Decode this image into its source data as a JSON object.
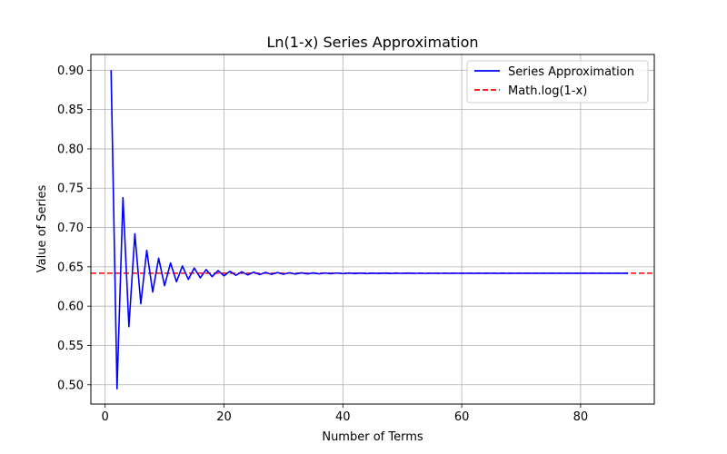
{
  "chart_data": {
    "type": "line",
    "title": "Ln(1-x) Series Approximation",
    "xlabel": "Number of Terms",
    "ylabel": "Value of Series",
    "xlim": [
      -2.4,
      92.4
    ],
    "ylim": [
      0.4755,
      0.92
    ],
    "x_ticks": [
      0,
      20,
      40,
      60,
      80
    ],
    "x_tick_labels": [
      "0",
      "20",
      "40",
      "60",
      "80"
    ],
    "y_ticks": [
      0.5,
      0.55,
      0.6,
      0.65,
      0.7,
      0.75,
      0.8,
      0.85,
      0.9
    ],
    "y_tick_labels": [
      "0.50",
      "0.55",
      "0.60",
      "0.65",
      "0.70",
      "0.75",
      "0.80",
      "0.85",
      "0.90"
    ],
    "grid": true,
    "legend_position": "top-right",
    "reference_line": {
      "name": "Math.log(1-x)",
      "value": 0.6419,
      "color": "#ff0000",
      "style": "dashed"
    },
    "series": [
      {
        "name": "Series Approximation",
        "color": "#0000ff",
        "style": "solid",
        "x_start": 1,
        "x_end": 88,
        "values": [
          0.9,
          0.495,
          0.738,
          0.574,
          0.692,
          0.603,
          0.671,
          0.618,
          0.661,
          0.626,
          0.655,
          0.631,
          0.651,
          0.634,
          0.6485,
          0.636,
          0.6465,
          0.6375,
          0.6452,
          0.6385,
          0.6443,
          0.6392,
          0.6437,
          0.6397,
          0.6432,
          0.6401,
          0.6429,
          0.6404,
          0.6427,
          0.6406,
          0.6425,
          0.6408,
          0.6424,
          0.641,
          0.6423,
          0.6411,
          0.6422,
          0.6412,
          0.6422,
          0.6413,
          0.6421,
          0.6414,
          0.6421,
          0.6414,
          0.642,
          0.6415,
          0.642,
          0.6415,
          0.642,
          0.6416,
          0.642,
          0.6416,
          0.6419,
          0.6416,
          0.6419,
          0.6416,
          0.6419,
          0.6417,
          0.6419,
          0.6417,
          0.6419,
          0.6417,
          0.6419,
          0.6417,
          0.6419,
          0.6417,
          0.6419,
          0.6417,
          0.6419,
          0.6418,
          0.6419,
          0.6418,
          0.6419,
          0.6418,
          0.6419,
          0.6418,
          0.6419,
          0.6418,
          0.6419,
          0.6418,
          0.6419,
          0.6418,
          0.6419,
          0.6418,
          0.6419,
          0.6418,
          0.6419,
          0.6418
        ]
      }
    ]
  }
}
